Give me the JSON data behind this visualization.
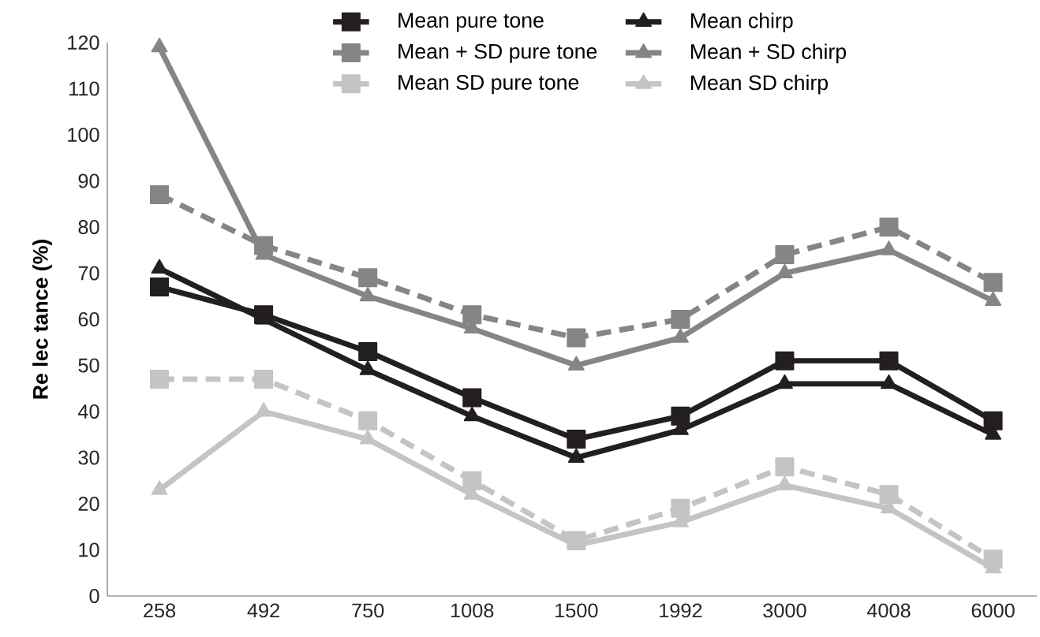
{
  "chart_data": {
    "type": "line",
    "ylabel": "Re lec tance (%)",
    "categories": [
      "258",
      "492",
      "750",
      "1008",
      "1500",
      "1992",
      "3000",
      "4008",
      "6000"
    ],
    "ylim": [
      0,
      120
    ],
    "yticks": [
      0,
      10,
      20,
      30,
      40,
      50,
      60,
      70,
      80,
      90,
      100,
      110,
      120
    ],
    "grid": false,
    "legend": "top",
    "series": [
      {
        "name": "Mean pure tone",
        "color": "#231f20",
        "marker": "square",
        "line_style": "solid",
        "values": [
          67,
          61,
          53,
          43,
          34,
          39,
          51,
          51,
          38
        ]
      },
      {
        "name": "Mean chirp",
        "color": "#231f20",
        "marker": "triangle",
        "line_style": "solid",
        "values": [
          71,
          60,
          49,
          39,
          30,
          36,
          46,
          46,
          35
        ]
      },
      {
        "name": "Mean + SD pure tone",
        "color": "#858585",
        "marker": "square",
        "line_style": "dashed",
        "values": [
          87,
          76,
          69,
          61,
          56,
          60,
          74,
          80,
          68
        ]
      },
      {
        "name": "Mean + SD chirp",
        "color": "#858585",
        "marker": "triangle",
        "line_style": "solid",
        "values": [
          119,
          74,
          65,
          58,
          50,
          56,
          70,
          75,
          64
        ]
      },
      {
        "name": "Mean   SD pure tone",
        "color": "#c4c4c4",
        "marker": "square",
        "line_style": "dashed",
        "values": [
          47,
          47,
          38,
          25,
          12,
          19,
          28,
          22,
          8
        ]
      },
      {
        "name": "Mean   SD chirp",
        "color": "#c4c4c4",
        "marker": "triangle",
        "line_style": "solid",
        "values": [
          23,
          40,
          34,
          22,
          11,
          16,
          24,
          19,
          6
        ]
      }
    ]
  }
}
